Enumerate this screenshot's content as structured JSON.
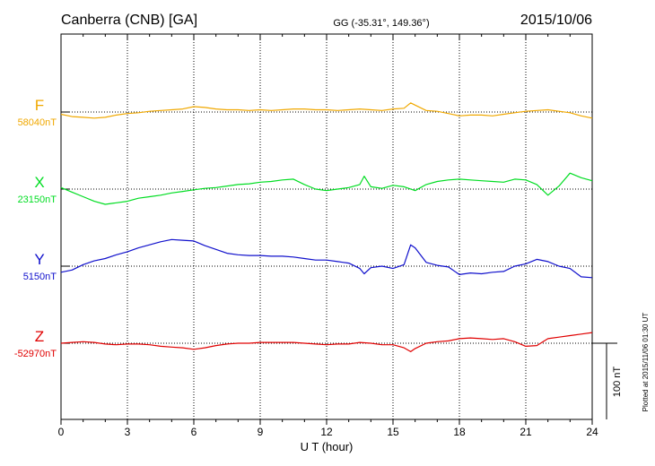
{
  "header": {
    "station": "Canberra (CNB)  [GA]",
    "coords": "GG (-35.31°, 149.36°)",
    "date": "2015/10/06"
  },
  "footer": {
    "xlabel": "U T (hour)",
    "scale_label": "100 nT",
    "plotted": "Plotted at 2015/11/06 01:30 UT"
  },
  "colors": {
    "F": "#f0a800",
    "X": "#00dd22",
    "Y": "#1010cc",
    "Z": "#e00000"
  },
  "chart_data": {
    "type": "line",
    "xlabel": "U T (hour)",
    "xlim": [
      0,
      24
    ],
    "xticks": [
      0,
      3,
      6,
      9,
      12,
      15,
      18,
      21,
      24
    ],
    "scale_bar_nT": 100,
    "grid": true,
    "series": [
      {
        "name": "F",
        "baseline_label": "58040nT",
        "x": [
          0,
          0.5,
          1,
          1.5,
          2,
          2.5,
          3,
          3.5,
          4,
          4.5,
          5,
          5.5,
          6,
          6.5,
          7,
          7.5,
          8,
          8.5,
          9,
          9.5,
          10,
          10.5,
          11,
          11.5,
          12,
          12.5,
          13,
          13.5,
          14,
          14.5,
          15,
          15.5,
          15.8,
          16,
          16.5,
          17,
          17.5,
          18,
          18.5,
          19,
          19.5,
          20,
          20.5,
          21,
          21.5,
          22,
          22.5,
          23,
          23.5,
          24
        ],
        "values": [
          -3,
          -6,
          -7,
          -8,
          -7,
          -4,
          -2,
          -1,
          1,
          2,
          3,
          4,
          7,
          6,
          4,
          3,
          3,
          2,
          3,
          2,
          3,
          4,
          4,
          3,
          3,
          2,
          3,
          4,
          3,
          2,
          4,
          5,
          12,
          9,
          2,
          1,
          -2,
          -5,
          -4,
          -4,
          -5,
          -3,
          -1,
          1,
          2,
          3,
          1,
          -1,
          -5,
          -8
        ]
      },
      {
        "name": "X",
        "baseline_label": "23150nT",
        "x": [
          0,
          0.5,
          1,
          1.5,
          2,
          2.5,
          3,
          3.5,
          4,
          4.5,
          5,
          5.5,
          6,
          6.5,
          7,
          7.5,
          8,
          8.5,
          9,
          9.5,
          10,
          10.5,
          11,
          11.5,
          12,
          12.5,
          13,
          13.5,
          13.7,
          14,
          14.5,
          15,
          15.5,
          16,
          16.5,
          17,
          17.5,
          18,
          18.5,
          19,
          19.5,
          20,
          20.5,
          21,
          21.5,
          22,
          22.5,
          23,
          23.5,
          24
        ],
        "values": [
          2,
          -4,
          -10,
          -16,
          -20,
          -18,
          -16,
          -12,
          -10,
          -8,
          -5,
          -3,
          -1,
          1,
          2,
          4,
          6,
          7,
          9,
          10,
          12,
          13,
          6,
          0,
          -2,
          0,
          2,
          6,
          17,
          3,
          1,
          5,
          3,
          -2,
          6,
          10,
          12,
          13,
          12,
          11,
          10,
          9,
          13,
          12,
          6,
          -8,
          4,
          21,
          15,
          11
        ]
      },
      {
        "name": "Y",
        "baseline_label": "5150nT",
        "x": [
          0,
          0.5,
          1,
          1.5,
          2,
          2.5,
          3,
          3.5,
          4,
          4.5,
          5,
          5.5,
          6,
          6.5,
          7,
          7.5,
          8,
          8.5,
          9,
          9.5,
          10,
          10.5,
          11,
          11.5,
          12,
          12.5,
          13,
          13.5,
          13.7,
          14,
          14.5,
          15,
          15.5,
          15.8,
          16,
          16.5,
          17,
          17.5,
          18,
          18.5,
          19,
          19.5,
          20,
          20.5,
          21,
          21.5,
          22,
          22.5,
          23,
          23.5,
          24
        ],
        "values": [
          -8,
          -5,
          2,
          7,
          10,
          15,
          19,
          24,
          28,
          32,
          35,
          34,
          33,
          27,
          22,
          17,
          15,
          14,
          14,
          13,
          13,
          12,
          10,
          8,
          8,
          6,
          4,
          -3,
          -10,
          -2,
          0,
          -3,
          2,
          28,
          24,
          5,
          1,
          -1,
          -11,
          -9,
          -10,
          -8,
          -7,
          0,
          3,
          9,
          6,
          0,
          -3,
          -14,
          -15
        ]
      },
      {
        "name": "Z",
        "baseline_label": "-52970nT",
        "x": [
          0,
          0.5,
          1,
          1.5,
          2,
          2.5,
          3,
          3.5,
          4,
          4.5,
          5,
          5.5,
          6,
          6.5,
          7,
          7.5,
          8,
          8.5,
          9,
          9.5,
          10,
          10.5,
          11,
          11.5,
          12,
          12.5,
          13,
          13.5,
          14,
          14.5,
          15,
          15.5,
          15.8,
          16,
          16.5,
          17,
          17.5,
          18,
          18.5,
          19,
          19.5,
          20,
          20.5,
          21,
          21.5,
          22,
          22.5,
          23,
          23.5,
          24
        ],
        "values": [
          0,
          1,
          2,
          1,
          -1,
          -2,
          -1,
          -1,
          -2,
          -4,
          -5,
          -6,
          -8,
          -6,
          -3,
          -1,
          0,
          0,
          1,
          1,
          1,
          1,
          0,
          -1,
          -2,
          -1,
          -1,
          1,
          0,
          -2,
          -2,
          -6,
          -11,
          -7,
          0,
          2,
          3,
          6,
          7,
          6,
          5,
          6,
          2,
          -4,
          -3,
          6,
          8,
          10,
          12,
          14
        ]
      }
    ]
  }
}
